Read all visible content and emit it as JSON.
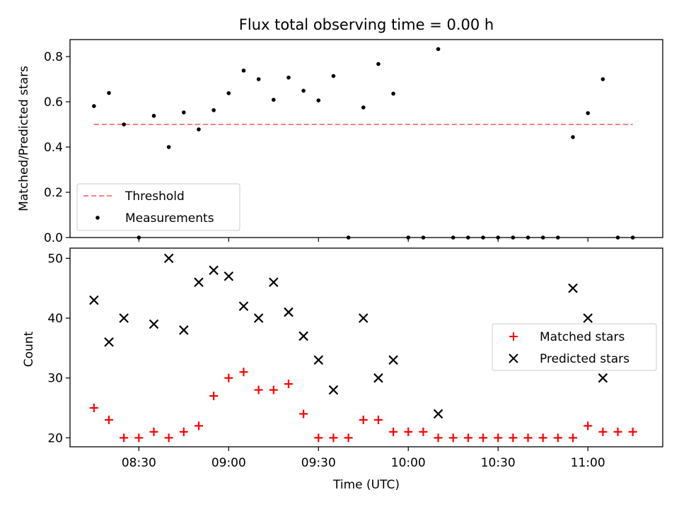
{
  "chart_data": [
    {
      "type": "scatter",
      "title": "Flux total observing time = 0.00 h",
      "xlabel": "",
      "ylabel": "Matched/Predicted stars",
      "ylim": [
        0.0,
        0.875
      ],
      "yticks": [
        0.0,
        0.2,
        0.4,
        0.6,
        0.8
      ],
      "ytick_labels": [
        "0.0",
        "0.2",
        "0.4",
        "0.6",
        "0.8"
      ],
      "xlim": [
        "08:07",
        "11:25"
      ],
      "legend": "lower-left",
      "threshold": {
        "name": "Threshold",
        "value": 0.5,
        "x_start": "08:15",
        "x_end": "11:15",
        "color": "#ff7f7f",
        "style": "dashed"
      },
      "series": [
        {
          "name": "Measurements",
          "marker": "dot",
          "color": "#000000",
          "x": [
            "08:15",
            "08:20",
            "08:25",
            "08:30",
            "08:35",
            "08:40",
            "08:45",
            "08:50",
            "08:55",
            "09:00",
            "09:05",
            "09:10",
            "09:15",
            "09:20",
            "09:25",
            "09:30",
            "09:35",
            "09:40",
            "09:45",
            "09:50",
            "09:55",
            "10:00",
            "10:05",
            "10:10",
            "10:15",
            "10:20",
            "10:25",
            "10:30",
            "10:35",
            "10:40",
            "10:45",
            "10:50",
            "10:55",
            "11:00",
            "11:05",
            "11:10",
            "11:15"
          ],
          "y": [
            0.581,
            0.639,
            0.5,
            0.0,
            0.538,
            0.4,
            0.553,
            0.478,
            0.563,
            0.638,
            0.738,
            0.7,
            0.609,
            0.707,
            0.649,
            0.606,
            0.714,
            0.0,
            0.575,
            0.767,
            0.636,
            0.0,
            0.0,
            0.833,
            0.0,
            0.0,
            0.0,
            0.0,
            0.0,
            0.0,
            0.0,
            0.0,
            0.444,
            0.55,
            0.7,
            0.0,
            0.0
          ]
        }
      ]
    },
    {
      "type": "scatter",
      "title": "",
      "xlabel": "Time (UTC)",
      "ylabel": "Count",
      "ylim": [
        18.5,
        51.7
      ],
      "yticks": [
        20,
        30,
        40,
        50
      ],
      "ytick_labels": [
        "20",
        "30",
        "40",
        "50"
      ],
      "xlim": [
        "08:07",
        "11:25"
      ],
      "xticks": [
        "08:30",
        "09:00",
        "09:30",
        "10:00",
        "10:30",
        "11:00"
      ],
      "legend": "center-right",
      "series": [
        {
          "name": "Matched stars",
          "marker": "plus",
          "color": "#ff0000",
          "x": [
            "08:15",
            "08:20",
            "08:25",
            "08:30",
            "08:35",
            "08:40",
            "08:45",
            "08:50",
            "08:55",
            "09:00",
            "09:05",
            "09:10",
            "09:15",
            "09:20",
            "09:25",
            "09:30",
            "09:35",
            "09:40",
            "09:45",
            "09:50",
            "09:55",
            "10:00",
            "10:05",
            "10:10",
            "10:15",
            "10:20",
            "10:25",
            "10:30",
            "10:35",
            "10:40",
            "10:45",
            "10:50",
            "10:55",
            "11:00",
            "11:05",
            "11:10",
            "11:15"
          ],
          "y": [
            25,
            23,
            20,
            20,
            21,
            20,
            21,
            22,
            27,
            30,
            31,
            28,
            28,
            29,
            24,
            20,
            20,
            20,
            23,
            23,
            21,
            21,
            21,
            20,
            20,
            20,
            20,
            20,
            20,
            20,
            20,
            20,
            20,
            22,
            21,
            21,
            21
          ]
        },
        {
          "name": "Predicted stars",
          "marker": "x",
          "color": "#000000",
          "x": [
            "08:15",
            "08:20",
            "08:25",
            "08:35",
            "08:40",
            "08:45",
            "08:50",
            "08:55",
            "09:00",
            "09:05",
            "09:10",
            "09:15",
            "09:20",
            "09:25",
            "09:30",
            "09:35",
            "09:45",
            "09:50",
            "09:55",
            "10:10",
            "10:55",
            "11:00",
            "11:05"
          ],
          "y": [
            43,
            36,
            40,
            39,
            50,
            38,
            46,
            48,
            47,
            42,
            40,
            46,
            41,
            37,
            33,
            28,
            40,
            30,
            33,
            24,
            45,
            40,
            30
          ]
        }
      ]
    }
  ]
}
